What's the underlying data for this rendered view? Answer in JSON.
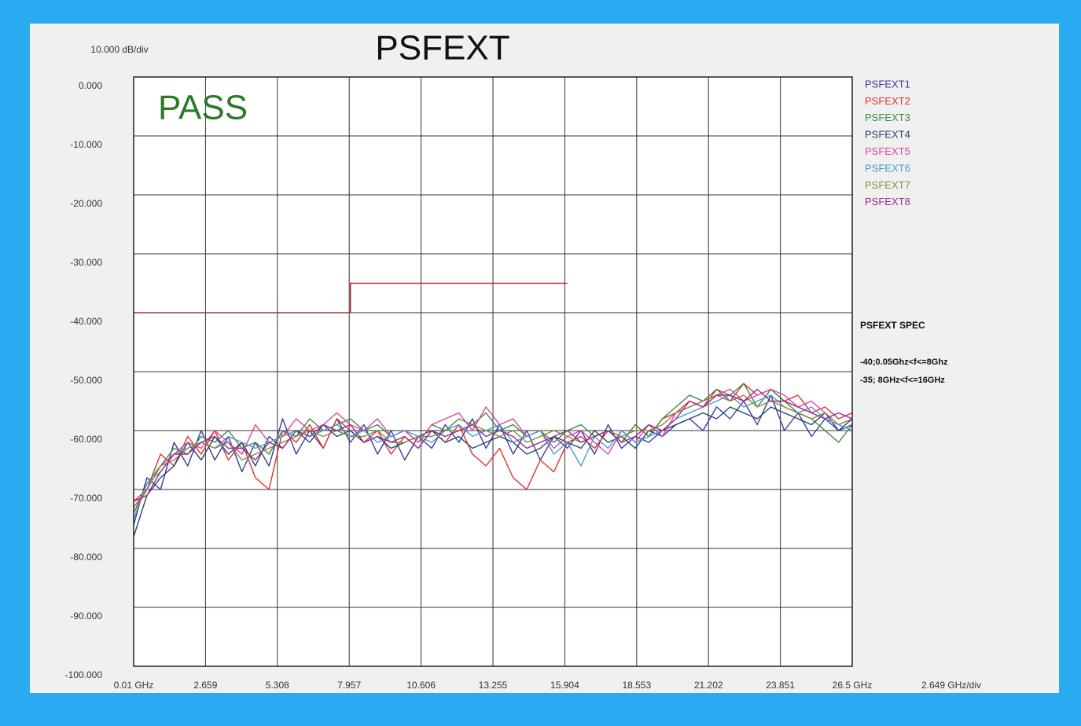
{
  "chart_data": {
    "type": "line",
    "title": "PSFEXT",
    "y_unit_label": "10.000 dB/div",
    "x_unit_label": "2.649 GHz/div",
    "status": "PASS",
    "spec_title": "PSFEXT SPEC",
    "spec_lines": [
      "-40;0.05Ghz<f<=8Ghz",
      "-35; 8GHz<f<=16GHz"
    ],
    "grid": true,
    "xlim": [
      0.01,
      26.5
    ],
    "ylim": [
      -100,
      0
    ],
    "xticks": [
      {
        "value": 0.01,
        "label": "0.01 GHz"
      },
      2.659,
      5.308,
      7.957,
      10.606,
      13.255,
      15.904,
      18.553,
      21.202,
      23.851,
      {
        "value": 26.5,
        "label": "26.5 GHz"
      }
    ],
    "yticks": [
      {
        "value": 0,
        "label": "0.000"
      },
      {
        "value": -10,
        "label": "-10.000"
      },
      {
        "value": -20,
        "label": "-20.000"
      },
      {
        "value": -30,
        "label": "-30.000"
      },
      {
        "value": -40,
        "label": "-40.000"
      },
      {
        "value": -50,
        "label": "-50.000"
      },
      {
        "value": -60,
        "label": "-60.000"
      },
      {
        "value": -70,
        "label": "-70.000"
      },
      {
        "value": -80,
        "label": "-80.000"
      },
      {
        "value": -90,
        "label": "-90.000"
      },
      {
        "value": -100,
        "label": "-100.000"
      }
    ],
    "spec_limit": {
      "color": "#b03030",
      "x": [
        0.01,
        8,
        8,
        16
      ],
      "values": [
        -40,
        -40,
        -35,
        -35
      ]
    },
    "x": [
      0.01,
      0.5,
      1,
      1.5,
      2,
      2.5,
      3,
      3.5,
      4,
      4.5,
      5,
      5.5,
      6,
      6.5,
      7,
      7.5,
      8,
      8.5,
      9,
      9.5,
      10,
      10.5,
      11,
      11.5,
      12,
      12.5,
      13,
      13.5,
      14,
      14.5,
      15,
      15.5,
      16,
      16.5,
      17,
      17.5,
      18,
      18.5,
      19,
      19.5,
      20,
      20.5,
      21,
      21.5,
      22,
      22.5,
      23,
      23.5,
      24,
      24.5,
      25,
      25.5,
      26,
      26.5
    ],
    "series": [
      {
        "name": "PSFEXT1",
        "color": "#3a3aa0",
        "values": [
          -76,
          -68,
          -70,
          -62,
          -66,
          -60,
          -65,
          -61,
          -67,
          -62,
          -66,
          -58,
          -64,
          -60,
          -63,
          -58,
          -62,
          -59,
          -64,
          -60,
          -65,
          -61,
          -63,
          -59,
          -62,
          -58,
          -63,
          -59,
          -64,
          -60,
          -65,
          -61,
          -63,
          -60,
          -64,
          -59,
          -63,
          -61,
          -62,
          -60,
          -59,
          -58,
          -60,
          -56,
          -58,
          -55,
          -59,
          -54,
          -60,
          -57,
          -61,
          -58,
          -60,
          -59
        ]
      },
      {
        "name": "PSFEXT2",
        "color": "#e0302a",
        "values": [
          -72,
          -70,
          -64,
          -66,
          -61,
          -64,
          -60,
          -65,
          -62,
          -68,
          -70,
          -60,
          -62,
          -59,
          -63,
          -58,
          -60,
          -62,
          -60,
          -64,
          -61,
          -63,
          -60,
          -62,
          -59,
          -64,
          -66,
          -63,
          -68,
          -70,
          -65,
          -67,
          -62,
          -61,
          -63,
          -60,
          -62,
          -59,
          -61,
          -58,
          -57,
          -55,
          -56,
          -53,
          -55,
          -52,
          -54,
          -53,
          -55,
          -54,
          -57,
          -56,
          -58,
          -57
        ]
      },
      {
        "name": "PSFEXT3",
        "color": "#3a8a3a",
        "values": [
          -74,
          -69,
          -66,
          -63,
          -64,
          -61,
          -62,
          -60,
          -63,
          -62,
          -64,
          -60,
          -61,
          -58,
          -60,
          -59,
          -58,
          -60,
          -59,
          -61,
          -60,
          -62,
          -59,
          -60,
          -58,
          -59,
          -57,
          -60,
          -59,
          -61,
          -60,
          -62,
          -60,
          -59,
          -61,
          -60,
          -62,
          -59,
          -61,
          -58,
          -56,
          -54,
          -55,
          -53,
          -54,
          -52,
          -56,
          -53,
          -55,
          -57,
          -58,
          -60,
          -62,
          -59
        ]
      },
      {
        "name": "PSFEXT4",
        "color": "#24466e",
        "values": [
          -78,
          -71,
          -68,
          -66,
          -62,
          -65,
          -61,
          -64,
          -62,
          -66,
          -61,
          -63,
          -60,
          -62,
          -59,
          -61,
          -60,
          -62,
          -61,
          -63,
          -62,
          -61,
          -60,
          -62,
          -61,
          -63,
          -62,
          -61,
          -62,
          -64,
          -63,
          -61,
          -62,
          -63,
          -60,
          -62,
          -61,
          -63,
          -60,
          -61,
          -59,
          -58,
          -57,
          -58,
          -56,
          -57,
          -58,
          -56,
          -57,
          -58,
          -59,
          -57,
          -60,
          -58
        ]
      },
      {
        "name": "PSFEXT5",
        "color": "#e040a8",
        "values": [
          -73,
          -70,
          -66,
          -64,
          -62,
          -63,
          -60,
          -62,
          -64,
          -59,
          -62,
          -61,
          -58,
          -60,
          -59,
          -57,
          -59,
          -60,
          -58,
          -61,
          -60,
          -62,
          -59,
          -58,
          -57,
          -60,
          -56,
          -59,
          -58,
          -61,
          -60,
          -63,
          -61,
          -60,
          -62,
          -64,
          -60,
          -62,
          -59,
          -61,
          -57,
          -56,
          -55,
          -54,
          -53,
          -55,
          -54,
          -53,
          -54,
          -56,
          -55,
          -57,
          -59,
          -58
        ]
      },
      {
        "name": "PSFEXT6",
        "color": "#4a9ad4",
        "values": [
          -75,
          -69,
          -67,
          -64,
          -63,
          -62,
          -63,
          -61,
          -62,
          -63,
          -62,
          -61,
          -60,
          -61,
          -60,
          -59,
          -61,
          -60,
          -62,
          -61,
          -60,
          -61,
          -62,
          -60,
          -59,
          -61,
          -60,
          -59,
          -62,
          -61,
          -60,
          -64,
          -62,
          -66,
          -61,
          -63,
          -60,
          -62,
          -61,
          -60,
          -58,
          -57,
          -56,
          -55,
          -54,
          -56,
          -55,
          -54,
          -56,
          -57,
          -56,
          -58,
          -59,
          -60
        ]
      },
      {
        "name": "PSFEXT7",
        "color": "#8a8a3a",
        "values": [
          -74,
          -70,
          -66,
          -65,
          -63,
          -62,
          -63,
          -62,
          -65,
          -64,
          -63,
          -62,
          -61,
          -60,
          -61,
          -60,
          -61,
          -61,
          -60,
          -62,
          -62,
          -61,
          -61,
          -60,
          -60,
          -59,
          -60,
          -61,
          -60,
          -62,
          -61,
          -60,
          -61,
          -62,
          -61,
          -60,
          -61,
          -60,
          -60,
          -59,
          -57,
          -56,
          -55,
          -54,
          -55,
          -54,
          -56,
          -55,
          -56,
          -57,
          -58,
          -57,
          -59,
          -58
        ]
      },
      {
        "name": "PSFEXT8",
        "color": "#9a2a8a",
        "values": [
          -72,
          -71,
          -67,
          -64,
          -64,
          -62,
          -61,
          -63,
          -63,
          -65,
          -62,
          -63,
          -60,
          -61,
          -59,
          -60,
          -59,
          -62,
          -61,
          -62,
          -61,
          -63,
          -60,
          -61,
          -60,
          -59,
          -61,
          -60,
          -61,
          -63,
          -62,
          -61,
          -60,
          -62,
          -61,
          -60,
          -62,
          -61,
          -59,
          -60,
          -58,
          -55,
          -56,
          -54,
          -54,
          -55,
          -53,
          -55,
          -55,
          -56,
          -57,
          -58,
          -57,
          -58
        ]
      }
    ]
  }
}
